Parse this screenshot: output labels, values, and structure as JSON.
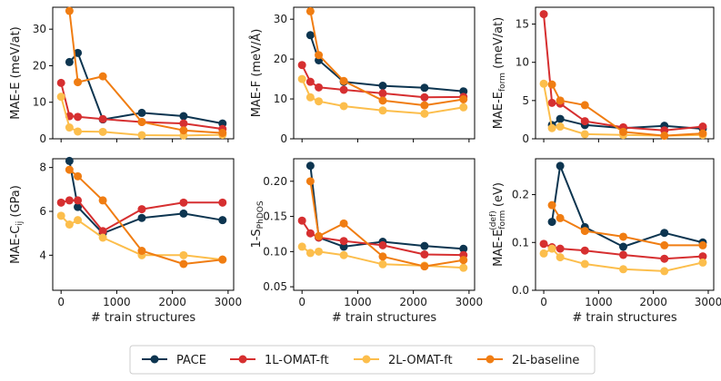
{
  "colors": {
    "PACE": "#0d3550",
    "1L-OMAT-ft": "#d62f30",
    "2L-OMAT-ft": "#fcbe4c",
    "2L-baseline": "#f07d12"
  },
  "legend": {
    "entries": [
      "PACE",
      "1L-OMAT-ft",
      "2L-OMAT-ft",
      "2L-baseline"
    ],
    "placement": "bottom-center"
  },
  "chart_data": [
    {
      "type": "line",
      "id": "mae-e",
      "ylabel_main": "MAE-E (meV/at)",
      "xlabel": "",
      "xlim": [
        -150,
        3100
      ],
      "ylim": [
        0,
        36
      ],
      "xticks": [
        0,
        1000,
        2000,
        3000
      ],
      "yticks": [
        0,
        10,
        20,
        30
      ],
      "show_xticklabels": false,
      "series": [
        {
          "name": "PACE",
          "x": [
            150,
            300,
            750,
            1450,
            2200,
            2900
          ],
          "y": [
            21,
            23.5,
            5.3,
            7.1,
            6.2,
            4.2
          ]
        },
        {
          "name": "1L-OMAT-ft",
          "x": [
            0,
            150,
            300,
            750,
            1450,
            2200,
            2900
          ],
          "y": [
            15.3,
            6.2,
            6.0,
            5.4,
            4.6,
            4.2,
            2.7
          ]
        },
        {
          "name": "2L-OMAT-ft",
          "x": [
            0,
            150,
            300,
            750,
            1450,
            2200,
            2900
          ],
          "y": [
            11.5,
            3.1,
            2.0,
            1.9,
            1.0,
            0.9,
            1.1
          ]
        },
        {
          "name": "2L-baseline",
          "x": [
            150,
            300,
            750,
            1450,
            2200,
            2900
          ],
          "y": [
            35,
            15.5,
            17.1,
            4.6,
            2.3,
            1.6
          ]
        }
      ]
    },
    {
      "type": "line",
      "id": "mae-f",
      "ylabel_main": "MAE-F (meV/Å)",
      "xlabel": "",
      "xlim": [
        -150,
        3100
      ],
      "ylim": [
        0,
        33
      ],
      "xticks": [
        0,
        1000,
        2000,
        3000
      ],
      "yticks": [
        0,
        10,
        20,
        30
      ],
      "show_xticklabels": false,
      "series": [
        {
          "name": "PACE",
          "x": [
            150,
            300,
            750,
            1450,
            2200,
            2900
          ],
          "y": [
            26,
            19.7,
            14.3,
            13.3,
            12.8,
            11.9
          ]
        },
        {
          "name": "1L-OMAT-ft",
          "x": [
            0,
            150,
            300,
            750,
            1450,
            2200,
            2900
          ],
          "y": [
            18.5,
            14.3,
            12.9,
            12.3,
            11.4,
            10.4,
            10.5
          ]
        },
        {
          "name": "2L-OMAT-ft",
          "x": [
            0,
            150,
            300,
            750,
            1450,
            2200,
            2900
          ],
          "y": [
            15.0,
            10.4,
            9.4,
            8.2,
            7.1,
            6.3,
            7.9
          ]
        },
        {
          "name": "2L-baseline",
          "x": [
            150,
            300,
            750,
            1450,
            2200,
            2900
          ],
          "y": [
            32,
            21.0,
            14.5,
            9.6,
            8.4,
            9.9
          ]
        }
      ]
    },
    {
      "type": "line",
      "id": "mae-eform",
      "ylabel_main": "MAE-E",
      "ylabel_sub": "form",
      "ylabel_tail": " (meV/at)",
      "xlabel": "",
      "xlim": [
        -150,
        3100
      ],
      "ylim": [
        0,
        17.2
      ],
      "xticks": [
        0,
        1000,
        2000,
        3000
      ],
      "yticks": [
        0,
        5,
        10,
        15
      ],
      "show_xticklabels": false,
      "series": [
        {
          "name": "PACE",
          "x": [
            150,
            300,
            750,
            1450,
            2200,
            2900
          ],
          "y": [
            1.8,
            2.6,
            1.8,
            1.4,
            1.7,
            1.3
          ]
        },
        {
          "name": "1L-OMAT-ft",
          "x": [
            0,
            150,
            300,
            750,
            1450,
            2200,
            2900
          ],
          "y": [
            16.3,
            4.7,
            4.6,
            2.3,
            1.5,
            1.1,
            1.6
          ]
        },
        {
          "name": "2L-OMAT-ft",
          "x": [
            0,
            150,
            300,
            750,
            1450,
            2200,
            2900
          ],
          "y": [
            7.2,
            1.4,
            1.6,
            0.6,
            0.5,
            0.4,
            0.5
          ]
        },
        {
          "name": "2L-baseline",
          "x": [
            150,
            300,
            750,
            1450,
            2200,
            2900
          ],
          "y": [
            7.1,
            5.0,
            4.4,
            0.9,
            0.4,
            0.7
          ]
        }
      ]
    },
    {
      "type": "line",
      "id": "mae-cij",
      "ylabel_main": "MAE-C",
      "ylabel_sub": "ij",
      "ylabel_tail": " (GPa)",
      "xlabel": "# train structures",
      "xlim": [
        -150,
        3100
      ],
      "ylim": [
        2.4,
        8.4
      ],
      "xticks": [
        0,
        1000,
        2000,
        3000
      ],
      "yticks": [
        4,
        6,
        8
      ],
      "show_xticklabels": true,
      "series": [
        {
          "name": "PACE",
          "x": [
            150,
            300,
            750,
            1450,
            2200,
            2900
          ],
          "y": [
            8.3,
            6.2,
            5.0,
            5.7,
            5.9,
            5.6
          ]
        },
        {
          "name": "1L-OMAT-ft",
          "x": [
            0,
            150,
            300,
            750,
            1450,
            2200,
            2900
          ],
          "y": [
            6.4,
            6.5,
            6.5,
            5.1,
            6.1,
            6.4,
            6.4
          ]
        },
        {
          "name": "2L-OMAT-ft",
          "x": [
            0,
            150,
            300,
            750,
            1450,
            2200,
            2900
          ],
          "y": [
            5.8,
            5.4,
            5.6,
            4.8,
            4.0,
            4.0,
            3.8
          ]
        },
        {
          "name": "2L-baseline",
          "x": [
            150,
            300,
            750,
            1450,
            2200,
            2900
          ],
          "y": [
            7.9,
            7.6,
            6.5,
            4.2,
            3.6,
            3.8
          ]
        }
      ]
    },
    {
      "type": "line",
      "id": "one-minus-s",
      "ylabel_main": "1-S",
      "ylabel_sub": "PhDOS",
      "ylabel_tail": "",
      "xlabel": "# train structures",
      "xlim": [
        -150,
        3100
      ],
      "ylim": [
        0.045,
        0.232
      ],
      "xticks": [
        0,
        1000,
        2000,
        3000
      ],
      "yticks": [
        0.05,
        0.1,
        0.15,
        0.2
      ],
      "yticklabels": [
        "0.05",
        "0.10",
        "0.15",
        "0.20"
      ],
      "show_xticklabels": true,
      "series": [
        {
          "name": "PACE",
          "x": [
            150,
            300,
            750,
            1450,
            2200,
            2900
          ],
          "y": [
            0.222,
            0.12,
            0.107,
            0.114,
            0.108,
            0.104
          ]
        },
        {
          "name": "1L-OMAT-ft",
          "x": [
            0,
            150,
            300,
            750,
            1450,
            2200,
            2900
          ],
          "y": [
            0.144,
            0.126,
            0.12,
            0.115,
            0.109,
            0.096,
            0.095
          ]
        },
        {
          "name": "2L-OMAT-ft",
          "x": [
            0,
            150,
            300,
            750,
            1450,
            2200,
            2900
          ],
          "y": [
            0.107,
            0.098,
            0.1,
            0.095,
            0.082,
            0.08,
            0.077
          ]
        },
        {
          "name": "2L-baseline",
          "x": [
            150,
            300,
            750,
            1450,
            2200,
            2900
          ],
          "y": [
            0.2,
            0.122,
            0.14,
            0.093,
            0.079,
            0.088
          ]
        }
      ]
    },
    {
      "type": "line",
      "id": "mae-def",
      "ylabel_main": "MAE-E",
      "ylabel_sub": "form",
      "ylabel_sup": "(def)",
      "ylabel_tail": " (eV)",
      "xlabel": "# train structures",
      "xlim": [
        -150,
        3100
      ],
      "ylim": [
        0,
        0.275
      ],
      "xticks": [
        0,
        1000,
        2000,
        3000
      ],
      "yticks": [
        0.0,
        0.1,
        0.2
      ],
      "yticklabels": [
        "0.0",
        "0.1",
        "0.2"
      ],
      "show_xticklabels": true,
      "series": [
        {
          "name": "PACE",
          "x": [
            150,
            300,
            750,
            1450,
            2200,
            2900
          ],
          "y": [
            0.143,
            0.26,
            0.132,
            0.091,
            0.12,
            0.1
          ]
        },
        {
          "name": "1L-OMAT-ft",
          "x": [
            0,
            150,
            300,
            750,
            1450,
            2200,
            2900
          ],
          "y": [
            0.097,
            0.09,
            0.087,
            0.083,
            0.074,
            0.066,
            0.071
          ]
        },
        {
          "name": "2L-OMAT-ft",
          "x": [
            0,
            150,
            300,
            750,
            1450,
            2200,
            2900
          ],
          "y": [
            0.077,
            0.087,
            0.069,
            0.055,
            0.044,
            0.04,
            0.058
          ]
        },
        {
          "name": "2L-baseline",
          "x": [
            150,
            300,
            750,
            1450,
            2200,
            2900
          ],
          "y": [
            0.178,
            0.151,
            0.124,
            0.112,
            0.094,
            0.094
          ]
        }
      ]
    }
  ]
}
